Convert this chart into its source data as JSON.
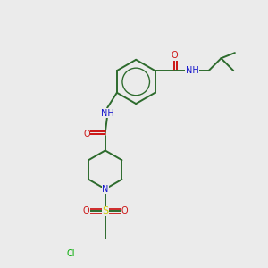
{
  "background_color": "#ebebeb",
  "bond_color": "#2d6b2d",
  "atom_colors": {
    "N": "#1515cc",
    "O": "#cc1515",
    "S": "#cccc00",
    "Cl": "#00aa00",
    "C": "#2d6b2d",
    "H": "#808080"
  },
  "figsize": [
    3.0,
    3.0
  ],
  "dpi": 100
}
